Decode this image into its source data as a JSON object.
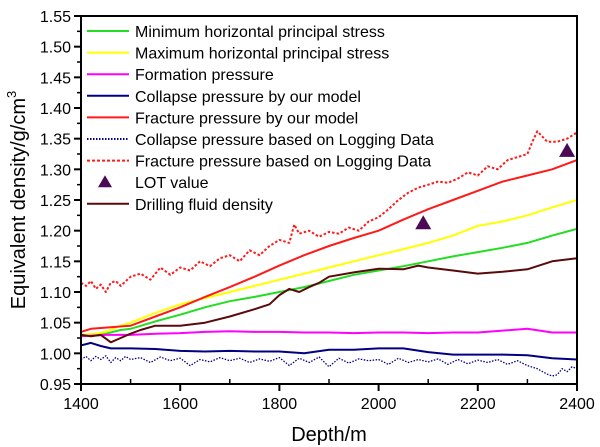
{
  "chart_data": {
    "type": "line",
    "title": "",
    "xlabel": "Depth/m",
    "ylabel": "Equivalent density/g/cm",
    "ylabel_superscript": "3",
    "xlim": [
      1400,
      2400
    ],
    "ylim": [
      0.95,
      1.55
    ],
    "xticks": [
      1400,
      1600,
      1800,
      2000,
      2200,
      2400
    ],
    "xtick_labels": [
      "1400",
      "1600",
      "1800",
      "2000",
      "2200",
      "2400"
    ],
    "xminor_step": 100,
    "yticks": [
      0.95,
      1.0,
      1.05,
      1.1,
      1.15,
      1.2,
      1.25,
      1.3,
      1.35,
      1.4,
      1.45,
      1.5,
      1.55
    ],
    "ytick_labels": [
      "0.95",
      "1.00",
      "1.05",
      "1.10",
      "1.15",
      "1.20",
      "1.25",
      "1.30",
      "1.35",
      "1.40",
      "1.45",
      "1.50",
      "1.55"
    ],
    "yminor_step": 0.025,
    "grid": false,
    "legend_position": "top-left",
    "series": [
      {
        "name": "Minimum horizontal principal stress",
        "color": "#22dd22",
        "style": "solid",
        "x": [
          1400,
          1430,
          1450,
          1480,
          1500,
          1550,
          1600,
          1650,
          1700,
          1750,
          1800,
          1850,
          1900,
          1950,
          2000,
          2050,
          2100,
          2150,
          2200,
          2250,
          2300,
          2350,
          2400
        ],
        "y": [
          1.03,
          1.03,
          1.032,
          1.038,
          1.04,
          1.052,
          1.063,
          1.075,
          1.085,
          1.092,
          1.1,
          1.108,
          1.118,
          1.128,
          1.135,
          1.142,
          1.15,
          1.158,
          1.165,
          1.172,
          1.18,
          1.192,
          1.203
        ]
      },
      {
        "name": "Maximum horizontal principal stress",
        "color": "#ffff00",
        "style": "solid",
        "x": [
          1400,
          1430,
          1450,
          1480,
          1500,
          1550,
          1600,
          1650,
          1700,
          1750,
          1800,
          1850,
          1900,
          1950,
          2000,
          2050,
          2100,
          2150,
          2200,
          2250,
          2300,
          2350,
          2400
        ],
        "y": [
          1.03,
          1.032,
          1.035,
          1.045,
          1.05,
          1.066,
          1.08,
          1.09,
          1.1,
          1.11,
          1.12,
          1.13,
          1.14,
          1.15,
          1.16,
          1.17,
          1.18,
          1.192,
          1.208,
          1.215,
          1.225,
          1.238,
          1.25
        ]
      },
      {
        "name": "Formation pressure",
        "color": "#ff00ff",
        "style": "solid",
        "x": [
          1400,
          1450,
          1500,
          1550,
          1600,
          1650,
          1700,
          1750,
          1800,
          1850,
          1900,
          1950,
          2000,
          2050,
          2100,
          2150,
          2200,
          2250,
          2300,
          2350,
          2400
        ],
        "y": [
          1.028,
          1.03,
          1.03,
          1.032,
          1.033,
          1.035,
          1.036,
          1.035,
          1.035,
          1.034,
          1.034,
          1.033,
          1.034,
          1.034,
          1.033,
          1.034,
          1.034,
          1.037,
          1.04,
          1.034,
          1.034
        ]
      },
      {
        "name": "Collapse pressure by our model",
        "color": "#000080",
        "style": "solid",
        "x": [
          1400,
          1420,
          1440,
          1460,
          1500,
          1550,
          1600,
          1650,
          1700,
          1750,
          1800,
          1850,
          1900,
          1950,
          2000,
          2050,
          2100,
          2150,
          2200,
          2250,
          2300,
          2350,
          2400
        ],
        "y": [
          1.013,
          1.017,
          1.012,
          1.008,
          1.008,
          1.007,
          1.004,
          1.003,
          1.004,
          1.003,
          1.003,
          1.0,
          1.006,
          1.006,
          1.008,
          1.008,
          1.002,
          0.998,
          0.998,
          0.998,
          0.997,
          0.992,
          0.99
        ]
      },
      {
        "name": "Fracture pressure by our model",
        "color": "#ff1a1a",
        "style": "solid",
        "x": [
          1400,
          1420,
          1450,
          1500,
          1550,
          1600,
          1650,
          1700,
          1750,
          1800,
          1850,
          1900,
          1950,
          2000,
          2050,
          2100,
          2150,
          2200,
          2250,
          2300,
          2350,
          2400
        ],
        "y": [
          1.035,
          1.04,
          1.042,
          1.045,
          1.06,
          1.075,
          1.092,
          1.108,
          1.125,
          1.143,
          1.16,
          1.175,
          1.188,
          1.2,
          1.218,
          1.235,
          1.25,
          1.265,
          1.28,
          1.29,
          1.3,
          1.315
        ]
      },
      {
        "name": "Collapse pressure based on Logging Data",
        "color": "#000080",
        "style": "dotted",
        "x": [
          1400,
          1410,
          1420,
          1430,
          1440,
          1450,
          1460,
          1470,
          1480,
          1490,
          1500,
          1520,
          1540,
          1560,
          1580,
          1600,
          1620,
          1640,
          1660,
          1680,
          1700,
          1720,
          1740,
          1760,
          1780,
          1800,
          1820,
          1840,
          1860,
          1880,
          1900,
          1920,
          1940,
          1960,
          1980,
          2000,
          2020,
          2040,
          2060,
          2080,
          2100,
          2120,
          2140,
          2160,
          2180,
          2200,
          2220,
          2240,
          2260,
          2280,
          2300,
          2320,
          2340,
          2350,
          2360,
          2370,
          2380,
          2390,
          2400
        ],
        "y": [
          0.99,
          0.995,
          0.988,
          0.995,
          0.99,
          0.996,
          0.985,
          0.993,
          0.988,
          0.995,
          0.99,
          0.993,
          0.985,
          0.994,
          0.988,
          0.992,
          0.98,
          0.99,
          0.986,
          0.993,
          0.988,
          0.992,
          0.985,
          0.991,
          0.987,
          0.993,
          0.98,
          0.992,
          0.985,
          0.994,
          0.978,
          0.992,
          0.984,
          0.991,
          0.988,
          0.99,
          0.982,
          0.992,
          0.985,
          0.99,
          0.986,
          0.991,
          0.982,
          0.99,
          0.983,
          0.989,
          0.985,
          0.99,
          0.982,
          0.988,
          0.98,
          0.975,
          0.966,
          0.963,
          0.965,
          0.975,
          0.97,
          0.978,
          0.975
        ]
      },
      {
        "name": "Fracture pressure based on Logging Data",
        "color": "#ff1a1a",
        "style": "dotted",
        "x": [
          1400,
          1410,
          1420,
          1430,
          1440,
          1450,
          1460,
          1470,
          1480,
          1500,
          1520,
          1540,
          1560,
          1580,
          1600,
          1620,
          1640,
          1660,
          1680,
          1700,
          1720,
          1740,
          1760,
          1780,
          1800,
          1820,
          1830,
          1840,
          1860,
          1880,
          1900,
          1920,
          1940,
          1960,
          1980,
          2000,
          2020,
          2040,
          2060,
          2080,
          2100,
          2120,
          2140,
          2160,
          2180,
          2200,
          2220,
          2240,
          2260,
          2280,
          2300,
          2310,
          2320,
          2340,
          2360,
          2380,
          2400
        ],
        "y": [
          1.115,
          1.11,
          1.118,
          1.105,
          1.112,
          1.1,
          1.115,
          1.118,
          1.11,
          1.125,
          1.13,
          1.12,
          1.14,
          1.128,
          1.14,
          1.135,
          1.15,
          1.142,
          1.155,
          1.16,
          1.15,
          1.168,
          1.16,
          1.175,
          1.185,
          1.18,
          1.21,
          1.195,
          1.2,
          1.19,
          1.198,
          1.195,
          1.205,
          1.2,
          1.215,
          1.222,
          1.235,
          1.25,
          1.262,
          1.27,
          1.275,
          1.28,
          1.278,
          1.285,
          1.295,
          1.29,
          1.305,
          1.3,
          1.315,
          1.32,
          1.325,
          1.345,
          1.362,
          1.345,
          1.345,
          1.35,
          1.36
        ]
      },
      {
        "name": "Drilling fluid density",
        "color": "#5a0a0a",
        "style": "solid",
        "x": [
          1400,
          1420,
          1440,
          1460,
          1480,
          1500,
          1520,
          1550,
          1600,
          1650,
          1700,
          1750,
          1780,
          1800,
          1820,
          1840,
          1860,
          1880,
          1900,
          1950,
          2000,
          2050,
          2080,
          2100,
          2150,
          2200,
          2250,
          2300,
          2350,
          2400
        ],
        "y": [
          1.03,
          1.028,
          1.03,
          1.018,
          1.025,
          1.032,
          1.038,
          1.045,
          1.045,
          1.05,
          1.06,
          1.072,
          1.08,
          1.095,
          1.105,
          1.1,
          1.108,
          1.115,
          1.125,
          1.132,
          1.138,
          1.137,
          1.143,
          1.14,
          1.135,
          1.13,
          1.133,
          1.137,
          1.15,
          1.155
        ]
      }
    ],
    "markers": [
      {
        "name": "LOT value",
        "color": "#4a0a55",
        "shape": "triangle",
        "x": [
          2090,
          2380
        ],
        "y": [
          1.212,
          1.33
        ]
      }
    ],
    "legend": [
      {
        "label": "Minimum horizontal principal stress",
        "kind": "line",
        "color": "#22dd22",
        "style": "solid"
      },
      {
        "label": "Maximum horizontal principal stress",
        "kind": "line",
        "color": "#ffff00",
        "style": "solid"
      },
      {
        "label": "Formation pressure",
        "kind": "line",
        "color": "#ff00ff",
        "style": "solid"
      },
      {
        "label": "Collapse pressure by our model",
        "kind": "line",
        "color": "#000080",
        "style": "solid"
      },
      {
        "label": "Fracture pressure by our model",
        "kind": "line",
        "color": "#ff1a1a",
        "style": "solid"
      },
      {
        "label": "Collapse pressure based on Logging Data",
        "kind": "line",
        "color": "#000080",
        "style": "dotted"
      },
      {
        "label": "Fracture pressure based on Logging Data",
        "kind": "line",
        "color": "#ff1a1a",
        "style": "dotted"
      },
      {
        "label": "LOT value",
        "kind": "triangle",
        "color": "#4a0a55",
        "style": "marker"
      },
      {
        "label": "Drilling fluid density",
        "kind": "line",
        "color": "#5a0a0a",
        "style": "solid"
      }
    ]
  }
}
